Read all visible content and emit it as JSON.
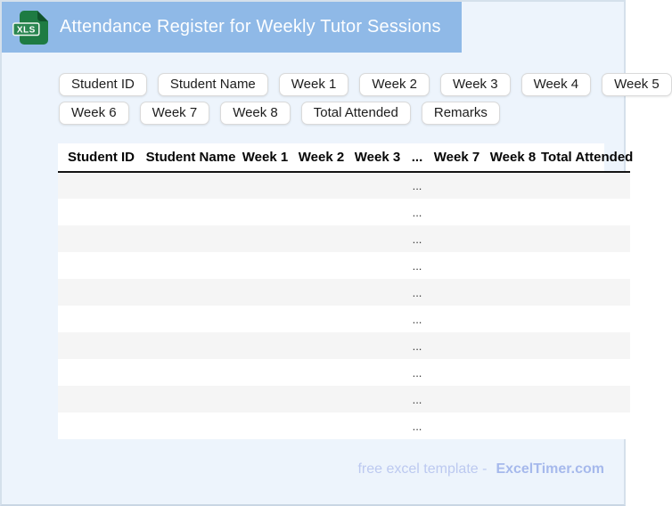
{
  "header": {
    "title": "Attendance Register for Weekly Tutor Sessions",
    "icon_label": "XLS"
  },
  "colors": {
    "banner_blue": "#8FB9E7",
    "page_background": "#EDF4FC",
    "icon_green": "#1E7B43",
    "icon_fold_green": "#10532C",
    "row_alt_gray": "#F5F5F5",
    "footer_text": "#BCC9F0",
    "footer_brand": "#A6B9EC"
  },
  "chips": {
    "rows": [
      [
        "Student ID",
        "Student Name",
        "Week 1",
        "Week 2",
        "Week 3",
        "Week 4",
        "Week 5"
      ],
      [
        "Week 6",
        "Week 7",
        "Week 8",
        "Total Attended",
        "Remarks"
      ]
    ]
  },
  "table": {
    "columns": [
      "Student ID",
      "Student Name",
      "Week 1",
      "Week 2",
      "Week 3",
      "...",
      "Week 7",
      "Week 8",
      "Total Attended"
    ],
    "dots_column_index": 5,
    "rows": [
      "...",
      "...",
      "...",
      "...",
      "...",
      "...",
      "...",
      "...",
      "...",
      "..."
    ]
  },
  "footer": {
    "text": "free excel template -",
    "brand": "ExcelTimer.com"
  }
}
